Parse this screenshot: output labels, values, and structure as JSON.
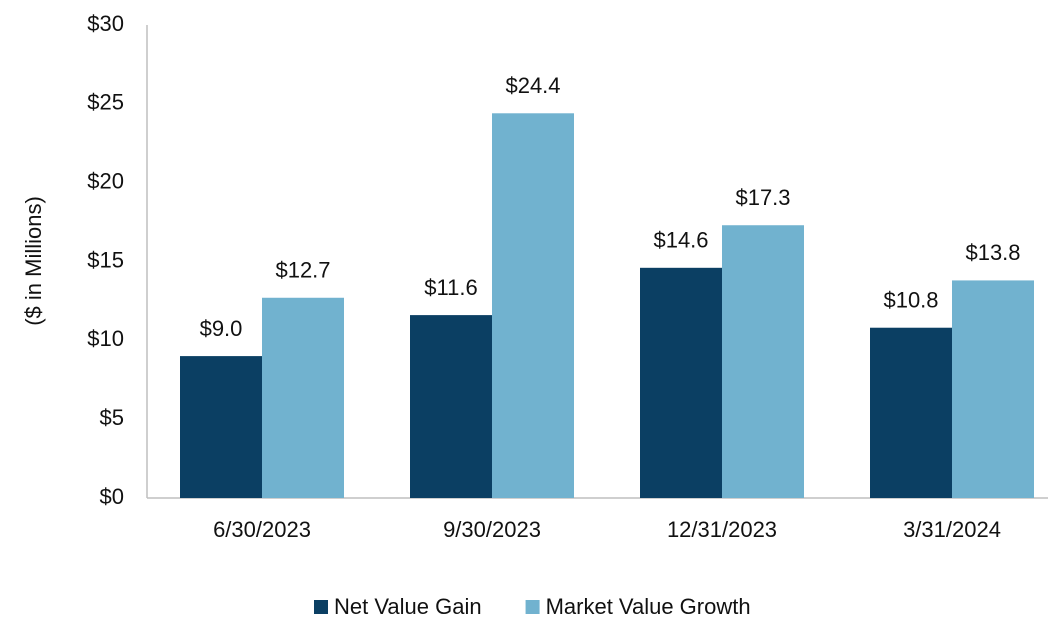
{
  "chart_data": {
    "type": "bar",
    "y_label": "($ in Millions)",
    "categories": [
      "6/30/2023",
      "9/30/2023",
      "12/31/2023",
      "3/31/2024"
    ],
    "series": [
      {
        "name": "Net Value Gain",
        "color": "#0b3f63",
        "values": [
          9.0,
          11.6,
          14.6,
          10.8
        ],
        "value_labels": [
          "$9.0",
          "$11.6",
          "$14.6",
          "$10.8"
        ]
      },
      {
        "name": "Market Value Growth",
        "color": "#71b2cf",
        "values": [
          12.7,
          24.4,
          17.3,
          13.8
        ],
        "value_labels": [
          "$12.7",
          "$24.4",
          "$17.3",
          "$13.8"
        ]
      }
    ],
    "ylim": [
      0,
      30
    ],
    "yticks": [
      {
        "value": 0,
        "label": "$0"
      },
      {
        "value": 5,
        "label": "$5"
      },
      {
        "value": 10,
        "label": "$10"
      },
      {
        "value": 15,
        "label": "$15"
      },
      {
        "value": 20,
        "label": "$20"
      },
      {
        "value": 25,
        "label": "$25"
      },
      {
        "value": 30,
        "label": "$30"
      }
    ],
    "legend": "bottom"
  }
}
